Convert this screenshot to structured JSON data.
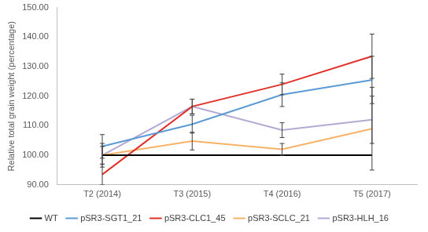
{
  "chart_data": {
    "type": "line",
    "y_label": "Relative total grain weight (percentage)",
    "categories": [
      "T2 (2014)",
      "T3 (2015)",
      "T4 (2016)",
      "T5 (2017)"
    ],
    "ylim": [
      90,
      150
    ],
    "yticks": [
      {
        "value": 90,
        "label": "90.00"
      },
      {
        "value": 100,
        "label": "100.00"
      },
      {
        "value": 110,
        "label": "110.00"
      },
      {
        "value": 120,
        "label": "120.00"
      },
      {
        "value": 130,
        "label": "130.00"
      },
      {
        "value": 140,
        "label": "140.00"
      },
      {
        "value": 150,
        "label": "150.00"
      }
    ],
    "grid": false,
    "legend": "bottom",
    "marker": "none",
    "series": [
      {
        "name": "WT",
        "color": "#000000",
        "values": [
          100,
          100,
          100,
          100
        ]
      },
      {
        "name": "pSR3-SGT1_21",
        "color": "#5b9bd5",
        "values": [
          103,
          110.5,
          120.5,
          125.5
        ],
        "errors": [
          4,
          3,
          4,
          8
        ]
      },
      {
        "name": "pSR3-CLC1_45",
        "color": "#e0302a",
        "values": [
          93.5,
          116.5,
          124,
          133.5
        ],
        "errors": [
          3.5,
          2.5,
          3.5,
          7.5
        ]
      },
      {
        "name": "pSR3-SCLC_21",
        "color": "#f7b267",
        "values": [
          100,
          104.8,
          102,
          109
        ],
        "errors": [
          3,
          3,
          2,
          14
        ]
      },
      {
        "name": "pSR3-HLH_16",
        "color": "#b3a9d3",
        "values": [
          100,
          116.5,
          108.5,
          112
        ],
        "errors": [
          4,
          2.5,
          2.5,
          8
        ]
      }
    ]
  }
}
